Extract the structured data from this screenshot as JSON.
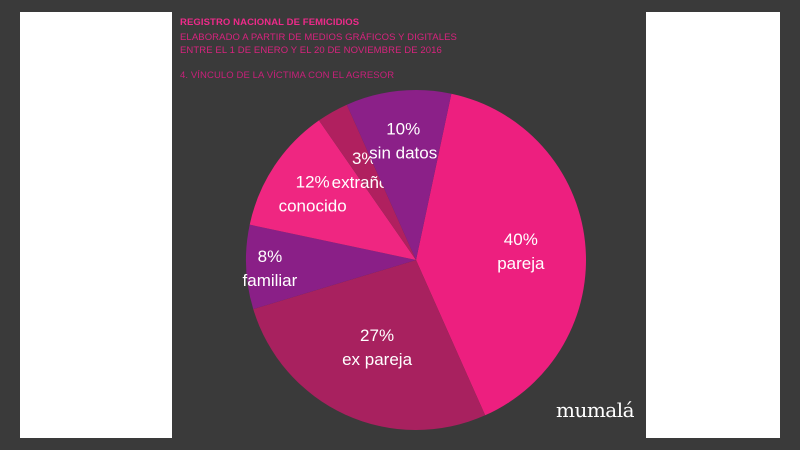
{
  "header": {
    "title": "REGISTRO NACIONAL DE FEMICIDIOS",
    "subtitle_1": "ELABORADO A PARTIR DE MEDIOS GRÁFICOS Y DIGITALES",
    "subtitle_2": "ENTRE EL 1 DE ENERO Y EL 20 DE NOVIEMBRE DE 2016",
    "section": "4. VÍNCULO DE LA VÍCTIMA CON EL AGRESOR"
  },
  "logo_text": "mumalá",
  "colors": {
    "background": "#3a3a3a",
    "header_pink": "#ee2a8a"
  },
  "chart_data": {
    "type": "pie",
    "title": "4. VÍNCULO DE LA VÍCTIMA CON EL AGRESOR",
    "unit": "%",
    "slices": [
      {
        "label": "pareja",
        "value": 40,
        "pct_label": "40%",
        "color": "#ed1f7f"
      },
      {
        "label": "ex pareja",
        "value": 27,
        "pct_label": "27%",
        "color": "#a8215f"
      },
      {
        "label": "familiar",
        "value": 8,
        "pct_label": "8%",
        "color": "#8a1f87"
      },
      {
        "label": "conocido",
        "value": 12,
        "pct_label": "12%",
        "color": "#ef2681"
      },
      {
        "label": "extraños",
        "value": 3,
        "pct_label": "3%",
        "color": "#b0205f"
      },
      {
        "label": "sin datos",
        "value": 10,
        "pct_label": "10%",
        "color": "#8b2088"
      }
    ]
  }
}
